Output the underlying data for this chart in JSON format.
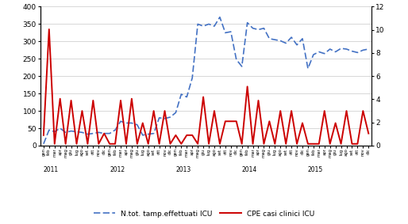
{
  "x_labels": [
    "gen",
    "feb",
    "mar",
    "apr",
    "mag",
    "giu",
    "lug",
    "ago",
    "set",
    "ott",
    "nov",
    "dic",
    "gen",
    "feb",
    "mar",
    "apr",
    "mag",
    "giu",
    "lug",
    "ago",
    "set",
    "ott",
    "nov",
    "dic",
    "gen",
    "feb",
    "mar",
    "apr",
    "mag",
    "giu",
    "lug",
    "ago",
    "set",
    "ott",
    "nov",
    "dic",
    "gen",
    "feb",
    "mar",
    "apr",
    "mag",
    "giu",
    "lug",
    "ago",
    "set",
    "ott",
    "nov",
    "dic",
    "gen",
    "feb",
    "mar",
    "apr",
    "mag",
    "giu",
    "lug",
    "ago",
    "set",
    "ott",
    "nov",
    "dic"
  ],
  "year_labels": [
    "2011",
    "2012",
    "2013",
    "2014",
    "2015"
  ],
  "year_positions": [
    0,
    12,
    24,
    36,
    48
  ],
  "n_points": 60,
  "blue_data": [
    5,
    45,
    40,
    50,
    38,
    42,
    40,
    38,
    33,
    35,
    38,
    35,
    35,
    45,
    70,
    65,
    65,
    60,
    30,
    33,
    35,
    80,
    78,
    82,
    95,
    148,
    140,
    195,
    350,
    344,
    350,
    344,
    370,
    325,
    328,
    248,
    228,
    354,
    338,
    334,
    338,
    308,
    305,
    302,
    295,
    312,
    290,
    308,
    222,
    262,
    270,
    265,
    278,
    270,
    280,
    278,
    272,
    268,
    275,
    278
  ],
  "red_data": [
    30,
    335,
    5,
    135,
    5,
    130,
    5,
    100,
    5,
    130,
    5,
    35,
    5,
    5,
    130,
    5,
    135,
    5,
    65,
    5,
    100,
    5,
    100,
    5,
    30,
    5,
    30,
    30,
    5,
    140,
    5,
    100,
    5,
    70,
    70,
    70,
    5,
    170,
    5,
    130,
    5,
    70,
    5,
    100,
    5,
    100,
    5,
    65,
    5,
    5,
    5,
    100,
    5,
    65,
    5,
    100,
    5,
    5,
    100,
    35
  ],
  "blue_color": "#4472C4",
  "red_color": "#CC0000",
  "left_ylim": [
    0,
    400
  ],
  "right_ylim": [
    0,
    12
  ],
  "left_yticks": [
    0,
    50,
    100,
    150,
    200,
    250,
    300,
    350,
    400
  ],
  "right_yticks": [
    0,
    2,
    4,
    6,
    8,
    10,
    12
  ],
  "legend_blue": "N.tot. tamp.effettuati ICU",
  "legend_red": "CPE casi clinici ICU",
  "background_color": "#ffffff",
  "grid_color": "#c8c8c8"
}
